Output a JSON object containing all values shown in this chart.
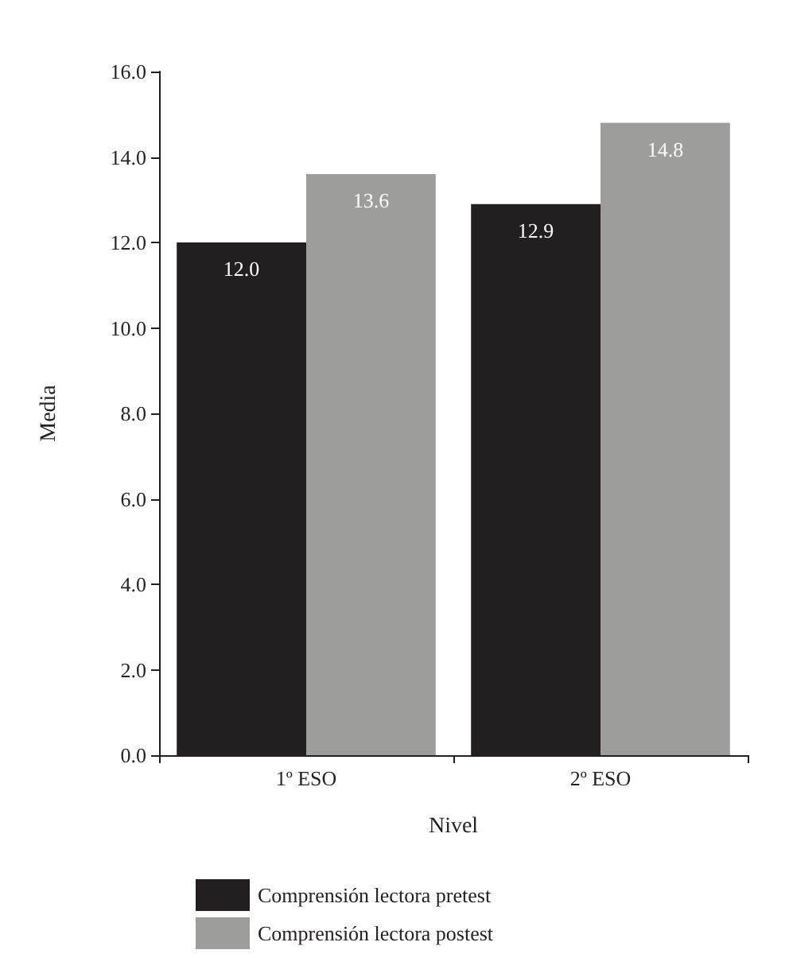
{
  "chart_data": {
    "type": "bar",
    "xlabel": "Nivel",
    "ylabel": "Media",
    "categories": [
      "1º ESO",
      "2º ESO"
    ],
    "series": [
      {
        "name": "Comprensión lectora pretest",
        "color": "#231f20",
        "values": [
          12.0,
          12.9
        ],
        "value_labels": [
          "12.0",
          "12.9"
        ]
      },
      {
        "name": "Comprensión lectora postest",
        "color": "#9d9d9c",
        "values": [
          13.6,
          14.8
        ],
        "value_labels": [
          "13.6",
          "14.8"
        ]
      }
    ],
    "ylim": [
      0,
      16
    ],
    "yticks": [
      {
        "value": 0,
        "label": "0.0"
      },
      {
        "value": 2,
        "label": "2.0"
      },
      {
        "value": 4,
        "label": "4.0"
      },
      {
        "value": 6,
        "label": "6.0"
      },
      {
        "value": 8,
        "label": "8.0"
      },
      {
        "value": 10,
        "label": "10.0"
      },
      {
        "value": 12,
        "label": "12.0"
      },
      {
        "value": 14,
        "label": "14.0"
      },
      {
        "value": 16,
        "label": "16.0"
      }
    ],
    "grid": false,
    "legend": "bottom"
  }
}
